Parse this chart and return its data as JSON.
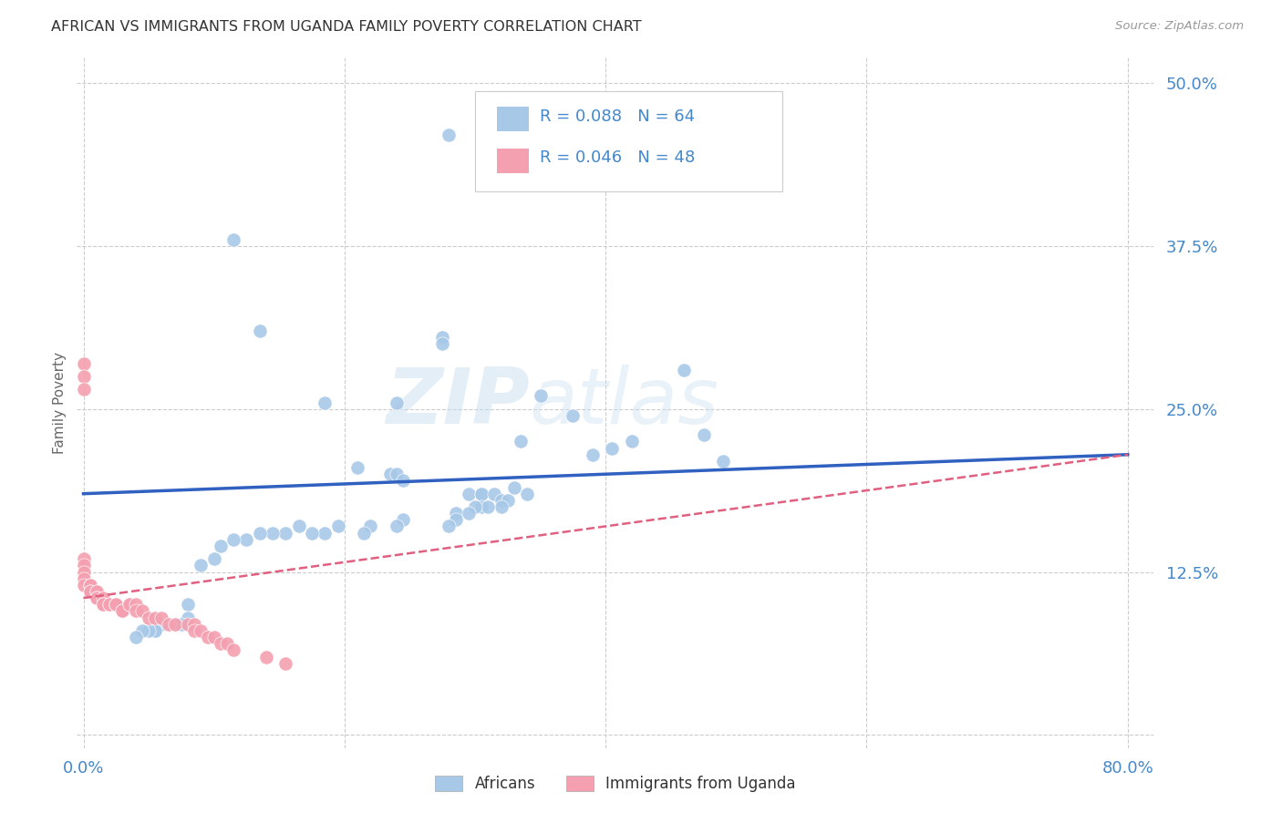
{
  "title": "AFRICAN VS IMMIGRANTS FROM UGANDA FAMILY POVERTY CORRELATION CHART",
  "source": "Source: ZipAtlas.com",
  "ylabel": "Family Poverty",
  "xlim": [
    -0.005,
    0.82
  ],
  "ylim": [
    -0.01,
    0.52
  ],
  "xticks": [
    0.0,
    0.2,
    0.4,
    0.6,
    0.8
  ],
  "xtick_labels": [
    "0.0%",
    "",
    "",
    "",
    "80.0%"
  ],
  "yticks": [
    0.0,
    0.125,
    0.25,
    0.375,
    0.5
  ],
  "ytick_labels": [
    "",
    "12.5%",
    "25.0%",
    "37.5%",
    "50.0%"
  ],
  "background_color": "#ffffff",
  "grid_color": "#cccccc",
  "watermark_zip": "ZIP",
  "watermark_atlas": "atlas",
  "blue_color": "#a8c8e8",
  "pink_color": "#f4a0b0",
  "line_blue": "#3060c0",
  "line_pink": "#e06080",
  "title_color": "#333333",
  "label_color": "#4488cc",
  "africans_x": [
    0.28,
    0.115,
    0.135,
    0.275,
    0.275,
    0.46,
    0.35,
    0.24,
    0.185,
    0.375,
    0.475,
    0.42,
    0.335,
    0.405,
    0.39,
    0.49,
    0.21,
    0.235,
    0.24,
    0.245,
    0.33,
    0.34,
    0.295,
    0.305,
    0.305,
    0.315,
    0.32,
    0.325,
    0.305,
    0.32,
    0.31,
    0.3,
    0.285,
    0.295,
    0.285,
    0.28,
    0.245,
    0.24,
    0.22,
    0.215,
    0.195,
    0.185,
    0.175,
    0.165,
    0.155,
    0.145,
    0.135,
    0.125,
    0.115,
    0.105,
    0.1,
    0.09,
    0.08,
    0.08,
    0.075,
    0.07,
    0.065,
    0.065,
    0.06,
    0.055,
    0.055,
    0.05,
    0.045,
    0.04
  ],
  "africans_y": [
    0.46,
    0.38,
    0.31,
    0.305,
    0.3,
    0.28,
    0.26,
    0.255,
    0.255,
    0.245,
    0.23,
    0.225,
    0.225,
    0.22,
    0.215,
    0.21,
    0.205,
    0.2,
    0.2,
    0.195,
    0.19,
    0.185,
    0.185,
    0.185,
    0.185,
    0.185,
    0.18,
    0.18,
    0.175,
    0.175,
    0.175,
    0.175,
    0.17,
    0.17,
    0.165,
    0.16,
    0.165,
    0.16,
    0.16,
    0.155,
    0.16,
    0.155,
    0.155,
    0.16,
    0.155,
    0.155,
    0.155,
    0.15,
    0.15,
    0.145,
    0.135,
    0.13,
    0.1,
    0.09,
    0.085,
    0.085,
    0.085,
    0.085,
    0.085,
    0.08,
    0.08,
    0.08,
    0.08,
    0.075
  ],
  "uganda_x": [
    0.0,
    0.0,
    0.0,
    0.0,
    0.0,
    0.0,
    0.0,
    0.0,
    0.005,
    0.005,
    0.005,
    0.005,
    0.005,
    0.01,
    0.01,
    0.01,
    0.01,
    0.015,
    0.015,
    0.015,
    0.02,
    0.02,
    0.025,
    0.025,
    0.025,
    0.03,
    0.03,
    0.035,
    0.035,
    0.04,
    0.04,
    0.045,
    0.05,
    0.055,
    0.06,
    0.065,
    0.07,
    0.08,
    0.085,
    0.085,
    0.09,
    0.095,
    0.1,
    0.105,
    0.11,
    0.115,
    0.14,
    0.155
  ],
  "uganda_y": [
    0.285,
    0.275,
    0.265,
    0.135,
    0.13,
    0.125,
    0.12,
    0.115,
    0.115,
    0.115,
    0.115,
    0.11,
    0.11,
    0.11,
    0.11,
    0.105,
    0.105,
    0.105,
    0.1,
    0.1,
    0.1,
    0.1,
    0.1,
    0.1,
    0.1,
    0.095,
    0.095,
    0.1,
    0.1,
    0.1,
    0.095,
    0.095,
    0.09,
    0.09,
    0.09,
    0.085,
    0.085,
    0.085,
    0.085,
    0.08,
    0.08,
    0.075,
    0.075,
    0.07,
    0.07,
    0.065,
    0.06,
    0.055
  ],
  "blue_line_x0": 0.0,
  "blue_line_y0": 0.185,
  "blue_line_x1": 0.8,
  "blue_line_y1": 0.215,
  "pink_line_x0": 0.0,
  "pink_line_y0": 0.105,
  "pink_line_x1": 0.8,
  "pink_line_y1": 0.215
}
